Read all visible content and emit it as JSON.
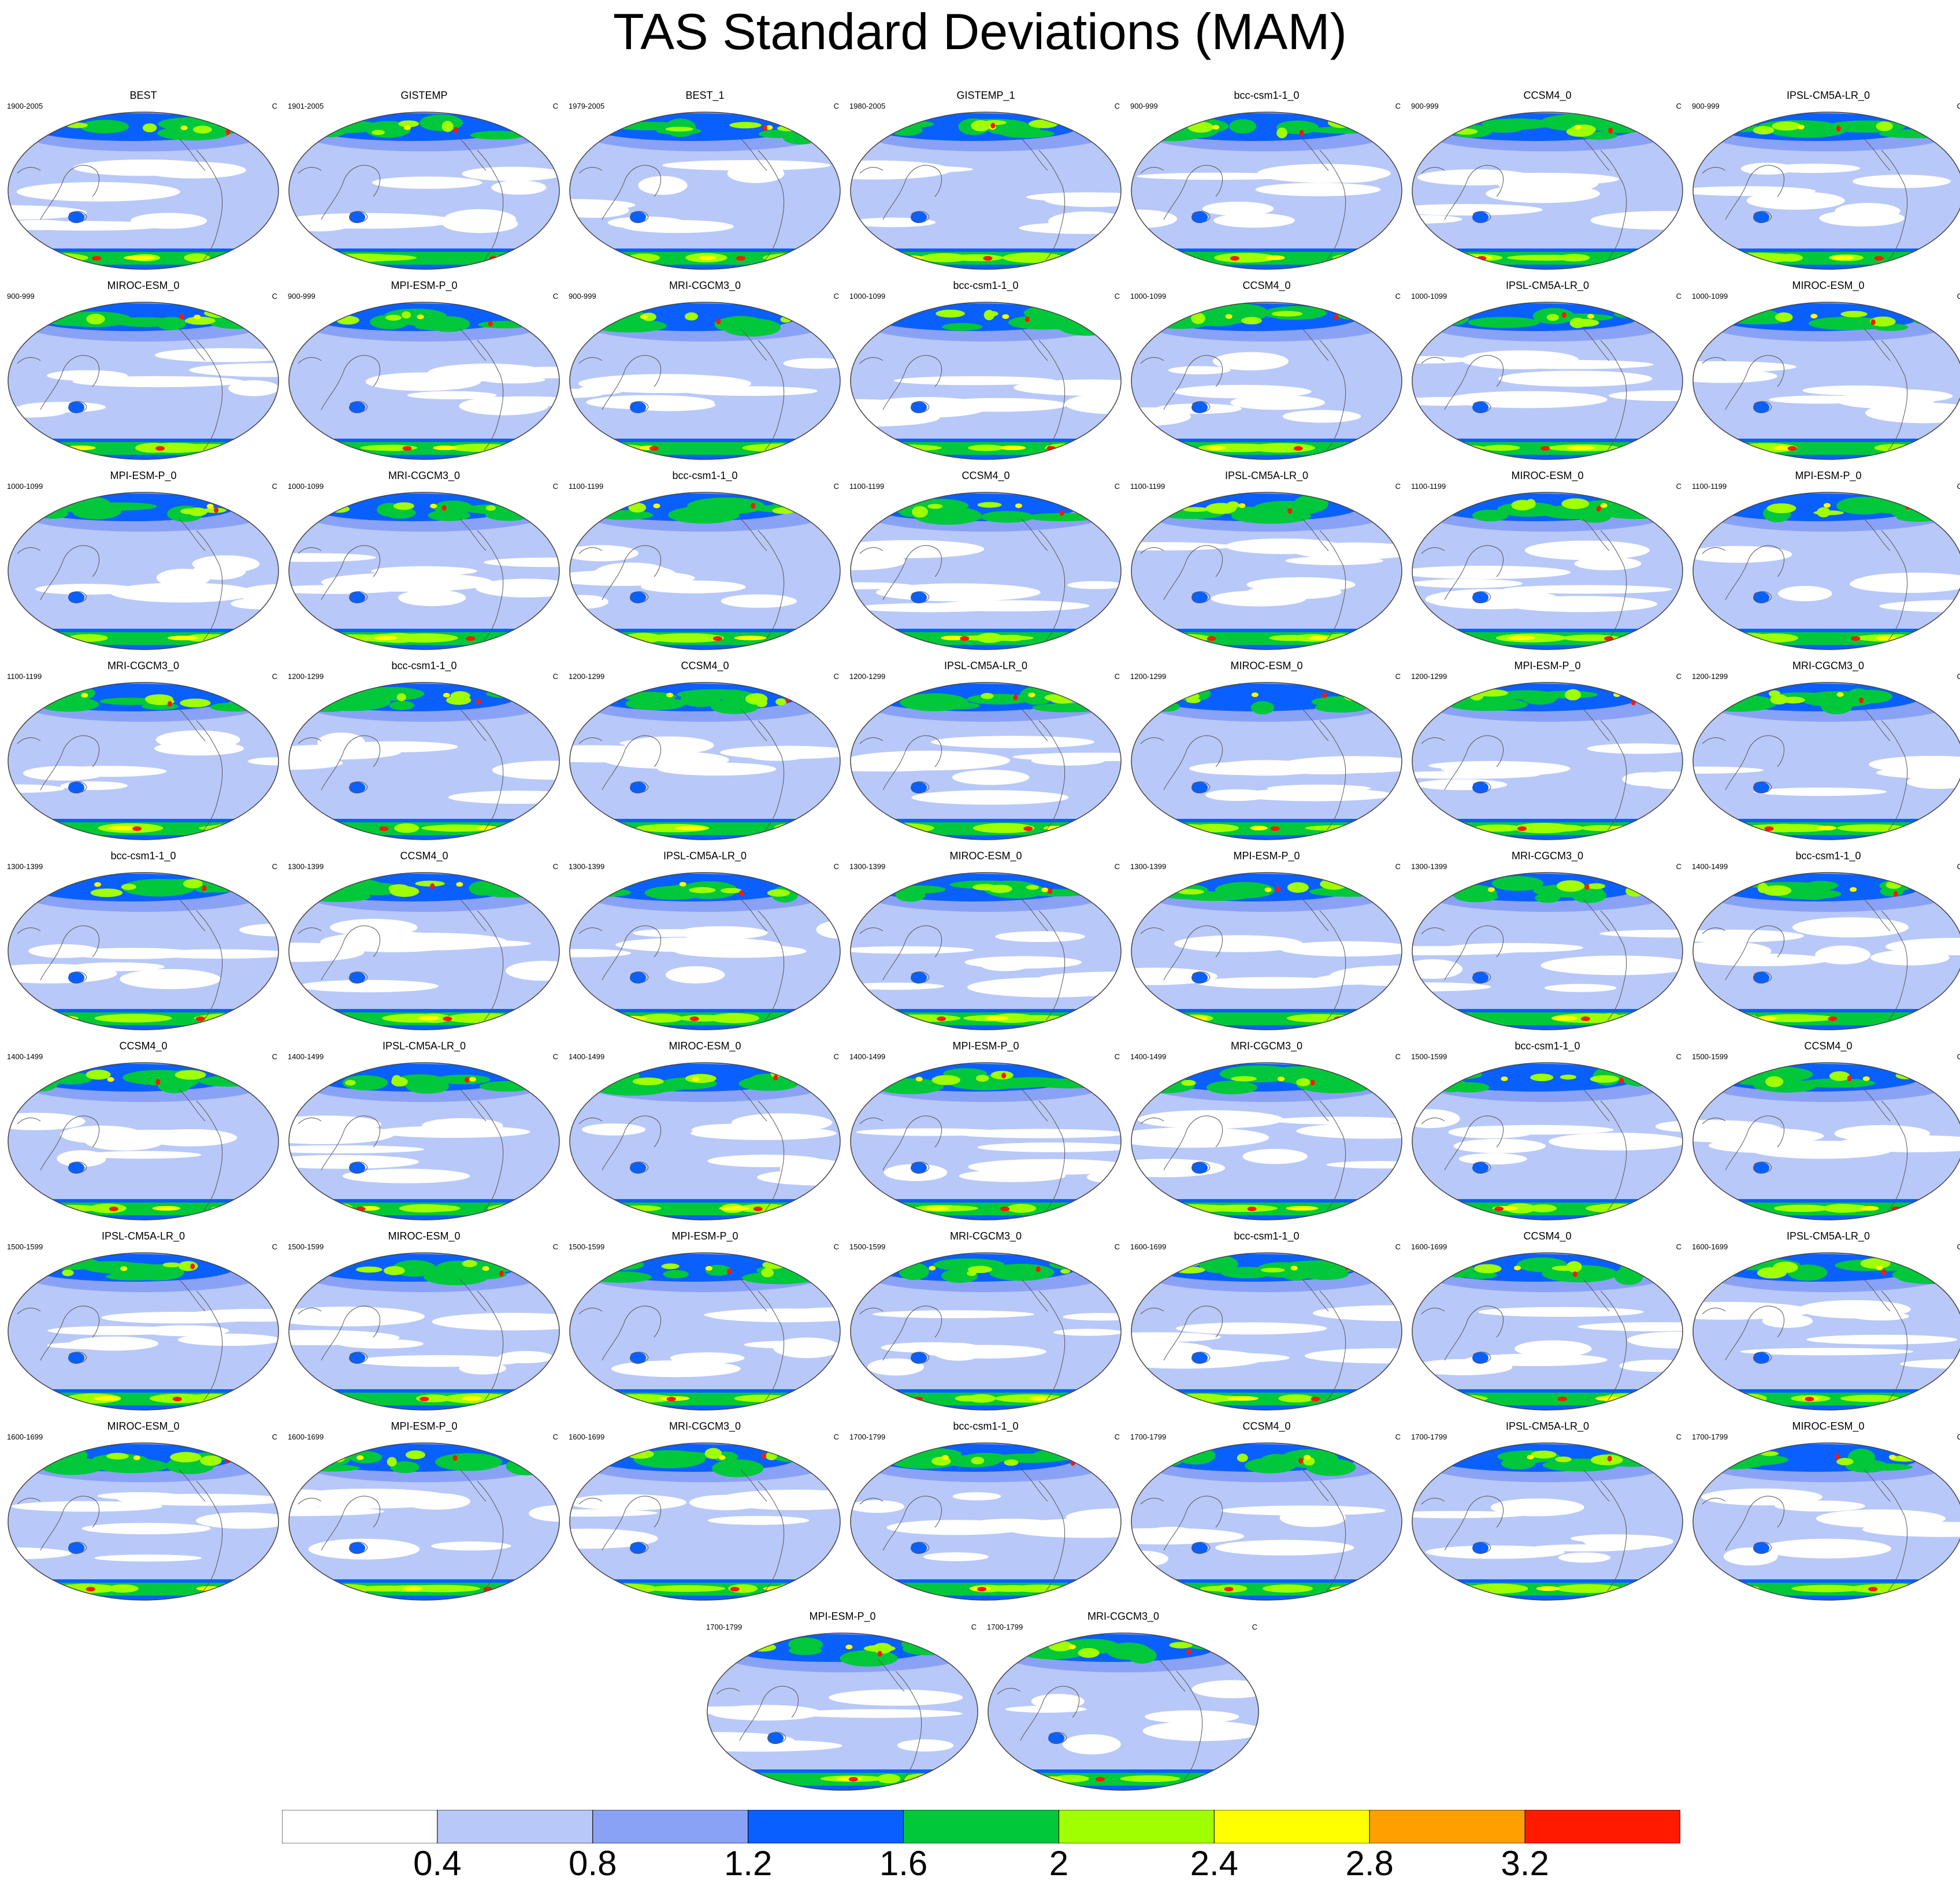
{
  "title": "TAS Standard Deviations (MAM)",
  "unit": "C",
  "legend": {
    "levels": [
      "0.4",
      "0.8",
      "1.2",
      "1.6",
      "2",
      "2.4",
      "2.8",
      "3.2"
    ],
    "colors": [
      "#ffffff",
      "#b8c8f8",
      "#8aa2f6",
      "#0a60ff",
      "#00c83a",
      "#a0ff00",
      "#ffff00",
      "#ffa000",
      "#ff1a00"
    ]
  },
  "panels": [
    {
      "name": "BEST",
      "period": "1900-2005"
    },
    {
      "name": "GISTEMP",
      "period": "1901-2005"
    },
    {
      "name": "BEST_1",
      "period": "1979-2005"
    },
    {
      "name": "GISTEMP_1",
      "period": "1980-2005"
    },
    {
      "name": "bcc-csm1-1_0",
      "period": "900-999"
    },
    {
      "name": "CCSM4_0",
      "period": "900-999"
    },
    {
      "name": "IPSL-CM5A-LR_0",
      "period": "900-999"
    },
    {
      "name": "MIROC-ESM_0",
      "period": "900-999"
    },
    {
      "name": "MPI-ESM-P_0",
      "period": "900-999"
    },
    {
      "name": "MRI-CGCM3_0",
      "period": "900-999"
    },
    {
      "name": "bcc-csm1-1_0",
      "period": "1000-1099"
    },
    {
      "name": "CCSM4_0",
      "period": "1000-1099"
    },
    {
      "name": "IPSL-CM5A-LR_0",
      "period": "1000-1099"
    },
    {
      "name": "MIROC-ESM_0",
      "period": "1000-1099"
    },
    {
      "name": "MPI-ESM-P_0",
      "period": "1000-1099"
    },
    {
      "name": "MRI-CGCM3_0",
      "period": "1000-1099"
    },
    {
      "name": "bcc-csm1-1_0",
      "period": "1100-1199"
    },
    {
      "name": "CCSM4_0",
      "period": "1100-1199"
    },
    {
      "name": "IPSL-CM5A-LR_0",
      "period": "1100-1199"
    },
    {
      "name": "MIROC-ESM_0",
      "period": "1100-1199"
    },
    {
      "name": "MPI-ESM-P_0",
      "period": "1100-1199"
    },
    {
      "name": "MRI-CGCM3_0",
      "period": "1100-1199"
    },
    {
      "name": "bcc-csm1-1_0",
      "period": "1200-1299"
    },
    {
      "name": "CCSM4_0",
      "period": "1200-1299"
    },
    {
      "name": "IPSL-CM5A-LR_0",
      "period": "1200-1299"
    },
    {
      "name": "MIROC-ESM_0",
      "period": "1200-1299"
    },
    {
      "name": "MPI-ESM-P_0",
      "period": "1200-1299"
    },
    {
      "name": "MRI-CGCM3_0",
      "period": "1200-1299"
    },
    {
      "name": "bcc-csm1-1_0",
      "period": "1300-1399"
    },
    {
      "name": "CCSM4_0",
      "period": "1300-1399"
    },
    {
      "name": "IPSL-CM5A-LR_0",
      "period": "1300-1399"
    },
    {
      "name": "MIROC-ESM_0",
      "period": "1300-1399"
    },
    {
      "name": "MPI-ESM-P_0",
      "period": "1300-1399"
    },
    {
      "name": "MRI-CGCM3_0",
      "period": "1300-1399"
    },
    {
      "name": "bcc-csm1-1_0",
      "period": "1400-1499"
    },
    {
      "name": "CCSM4_0",
      "period": "1400-1499"
    },
    {
      "name": "IPSL-CM5A-LR_0",
      "period": "1400-1499"
    },
    {
      "name": "MIROC-ESM_0",
      "period": "1400-1499"
    },
    {
      "name": "MPI-ESM-P_0",
      "period": "1400-1499"
    },
    {
      "name": "MRI-CGCM3_0",
      "period": "1400-1499"
    },
    {
      "name": "bcc-csm1-1_0",
      "period": "1500-1599"
    },
    {
      "name": "CCSM4_0",
      "period": "1500-1599"
    },
    {
      "name": "IPSL-CM5A-LR_0",
      "period": "1500-1599"
    },
    {
      "name": "MIROC-ESM_0",
      "period": "1500-1599"
    },
    {
      "name": "MPI-ESM-P_0",
      "period": "1500-1599"
    },
    {
      "name": "MRI-CGCM3_0",
      "period": "1500-1599"
    },
    {
      "name": "bcc-csm1-1_0",
      "period": "1600-1699"
    },
    {
      "name": "CCSM4_0",
      "period": "1600-1699"
    },
    {
      "name": "IPSL-CM5A-LR_0",
      "period": "1600-1699"
    },
    {
      "name": "MIROC-ESM_0",
      "period": "1600-1699"
    },
    {
      "name": "MPI-ESM-P_0",
      "period": "1600-1699"
    },
    {
      "name": "MRI-CGCM3_0",
      "period": "1600-1699"
    },
    {
      "name": "bcc-csm1-1_0",
      "period": "1700-1799"
    },
    {
      "name": "CCSM4_0",
      "period": "1700-1799"
    },
    {
      "name": "IPSL-CM5A-LR_0",
      "period": "1700-1799"
    },
    {
      "name": "MIROC-ESM_0",
      "period": "1700-1799"
    },
    {
      "name": "MPI-ESM-P_0",
      "period": "1700-1799"
    },
    {
      "name": "MRI-CGCM3_0",
      "period": "1700-1799"
    }
  ]
}
